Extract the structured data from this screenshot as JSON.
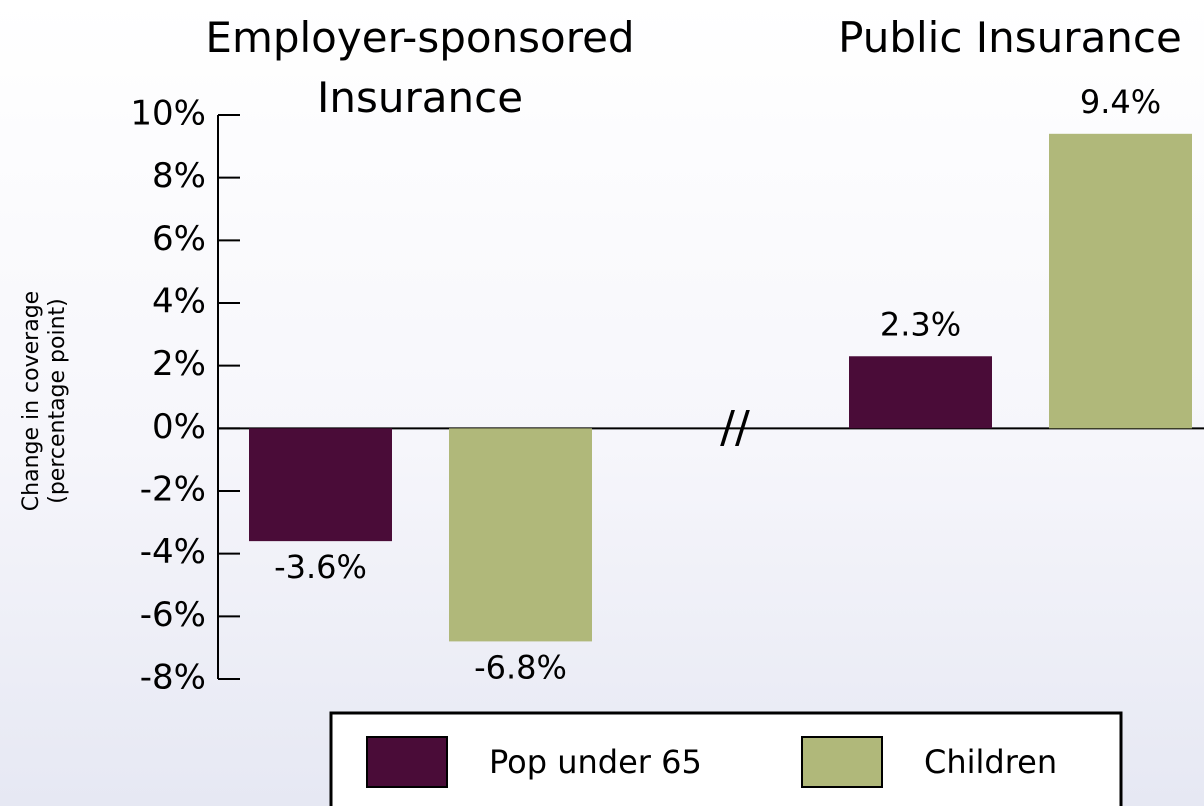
{
  "chart_data": {
    "type": "bar",
    "categories": [
      "Employer-sponsored Insurance",
      "Public Insurance"
    ],
    "y_label": "Change in coverage (percentage point)",
    "series": [
      {
        "name": "Pop under 65",
        "color": "#4a0c38",
        "values": [
          -3.6,
          2.3
        ],
        "value_labels": [
          "-3.6%",
          "2.3%"
        ]
      },
      {
        "name": "Children",
        "color": "#b0b87a",
        "values": [
          -6.8,
          9.4
        ],
        "value_labels": [
          "-6.8%",
          "9.4%"
        ]
      }
    ],
    "ylim": [
      -8,
      10
    ],
    "yticks": [
      {
        "value": -8,
        "label": "-8%"
      },
      {
        "value": -6,
        "label": "-6%"
      },
      {
        "value": -4,
        "label": "-4%"
      },
      {
        "value": -2,
        "label": "-2%"
      },
      {
        "value": 0,
        "label": "0%"
      },
      {
        "value": 2,
        "label": "2%"
      },
      {
        "value": 4,
        "label": "4%"
      },
      {
        "value": 6,
        "label": "6%"
      },
      {
        "value": 8,
        "label": "8%"
      },
      {
        "value": 10,
        "label": "10%"
      }
    ],
    "legend": "bottom"
  }
}
